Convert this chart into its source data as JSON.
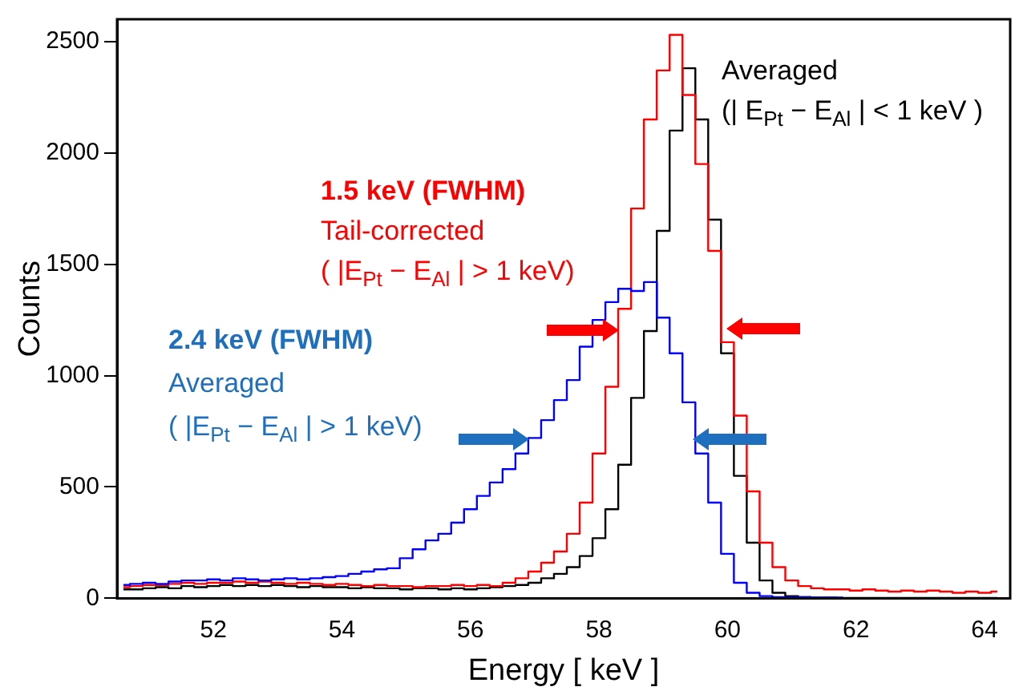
{
  "chart_data": {
    "type": "step",
    "xlabel": "Energy [ keV ]",
    "ylabel": "Counts",
    "x": [
      50.6,
      50.8,
      51.0,
      51.2,
      51.4,
      51.6,
      51.8,
      52.0,
      52.2,
      52.4,
      52.6,
      52.8,
      53.0,
      53.2,
      53.4,
      53.6,
      53.8,
      54.0,
      54.2,
      54.4,
      54.6,
      54.8,
      55.0,
      55.2,
      55.4,
      55.6,
      55.8,
      56.0,
      56.2,
      56.4,
      56.6,
      56.8,
      57.0,
      57.2,
      57.4,
      57.6,
      57.8,
      58.0,
      58.2,
      58.4,
      58.6,
      58.8,
      59.0,
      59.2,
      59.4,
      59.6,
      59.8,
      60.0,
      60.2,
      60.4,
      60.6,
      60.8,
      61.0,
      61.2,
      61.4,
      61.6,
      61.8,
      62.0,
      62.2,
      62.4,
      62.6,
      62.8,
      63.0,
      63.2,
      63.4,
      63.6,
      63.8,
      64.0,
      64.2
    ],
    "series": [
      {
        "color": "#0000ff",
        "values": [
          60,
          65,
          70,
          65,
          75,
          80,
          80,
          85,
          80,
          90,
          85,
          80,
          85,
          90,
          85,
          90,
          95,
          100,
          110,
          120,
          130,
          135,
          180,
          220,
          260,
          290,
          340,
          400,
          460,
          520,
          580,
          650,
          720,
          800,
          890,
          980,
          1130,
          1250,
          1330,
          1390,
          1380,
          1420,
          1260,
          1100,
          880,
          650,
          430,
          200,
          70,
          25,
          10,
          5,
          5,
          5,
          3,
          3,
          3,
          null,
          null,
          null,
          null,
          null,
          null,
          null,
          null,
          null,
          null,
          null,
          null
        ]
      },
      {
        "color": "#ff0000",
        "values": [
          50,
          55,
          60,
          60,
          65,
          70,
          65,
          70,
          70,
          75,
          70,
          75,
          70,
          65,
          70,
          65,
          60,
          65,
          60,
          55,
          60,
          55,
          55,
          50,
          55,
          55,
          60,
          55,
          60,
          55,
          70,
          90,
          120,
          160,
          210,
          290,
          430,
          650,
          950,
          1300,
          1750,
          2150,
          2370,
          2530,
          2260,
          1950,
          1560,
          1150,
          820,
          480,
          250,
          140,
          80,
          55,
          45,
          40,
          40,
          35,
          40,
          35,
          30,
          35,
          30,
          35,
          30,
          25,
          30,
          25,
          30
        ]
      },
      {
        "color": "#000000",
        "values": [
          40,
          40,
          45,
          50,
          45,
          55,
          50,
          55,
          60,
          55,
          60,
          55,
          60,
          55,
          50,
          55,
          50,
          50,
          45,
          50,
          45,
          45,
          40,
          45,
          45,
          40,
          45,
          40,
          45,
          50,
          55,
          60,
          70,
          90,
          110,
          140,
          190,
          270,
          400,
          600,
          900,
          1200,
          1650,
          2100,
          2380,
          2150,
          1700,
          1100,
          550,
          250,
          80,
          25,
          10,
          5,
          3,
          3,
          2,
          2,
          2,
          2,
          2,
          2,
          2,
          2,
          2,
          2,
          2,
          2,
          2
        ]
      }
    ],
    "xlim": [
      50.5,
      64.4
    ],
    "ylim": [
      0,
      2600
    ],
    "xticks": [
      52,
      54,
      56,
      58,
      60,
      62,
      64
    ],
    "yticks": [
      0,
      500,
      1000,
      1500,
      2000,
      2500
    ],
    "grid": false,
    "legend": false,
    "annotations": [
      "1.5 keV (FWHM)",
      "Tail-corrected",
      "( |E$_{Pt}$ − E$_{Al}$ | > 1 keV)",
      "2.4 keV (FWHM)",
      "Averaged",
      "( |E$_{Pt}$ − E$_{Al}$ | > 1 keV)",
      "Averaged",
      "(| E$_{Pt}$ − E$_{Al}$ | < 1 keV )"
    ]
  }
}
